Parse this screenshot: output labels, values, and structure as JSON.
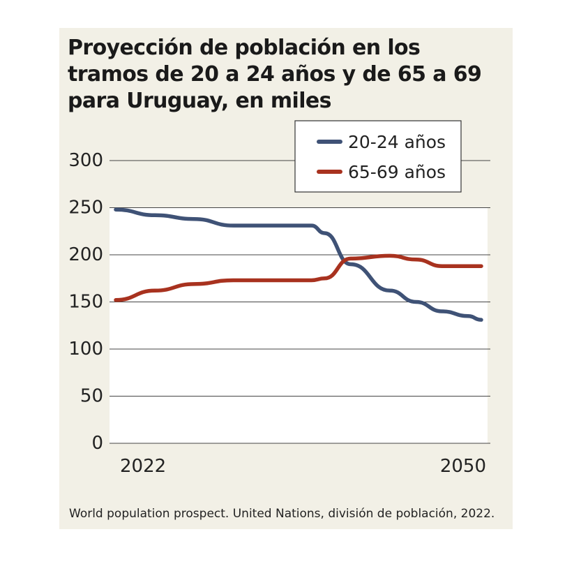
{
  "chart_data": {
    "type": "line",
    "title": "Proyección de población en los tramos de 20 a 24 años y de 65 a 69 para Uruguay, en miles",
    "x": [
      2022,
      2025,
      2028,
      2031,
      2034,
      2037,
      2038,
      2040,
      2043,
      2045,
      2047,
      2049,
      2050
    ],
    "x_tick_labels": [
      "2022",
      "2050"
    ],
    "xlim": [
      2021.5,
      2050.5
    ],
    "ylim": [
      0,
      300
    ],
    "y_ticks": [
      0,
      50,
      100,
      150,
      200,
      250,
      300
    ],
    "series": [
      {
        "name": "20-24 años",
        "color": "#3f5276",
        "values": [
          248,
          242,
          238,
          231,
          231,
          231,
          223,
          190,
          162,
          150,
          140,
          135,
          131
        ]
      },
      {
        "name": "65-69 años",
        "color": "#a8321f",
        "values": [
          152,
          162,
          169,
          173,
          173,
          173,
          175,
          196,
          199,
          195,
          188,
          188,
          188
        ]
      }
    ],
    "legend_position": "top-right",
    "grid": true,
    "source": "World population prospect. United Nations, división de población, 2022."
  }
}
